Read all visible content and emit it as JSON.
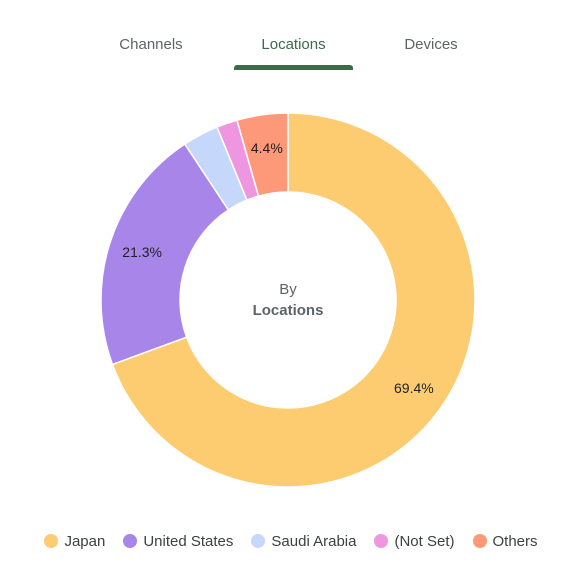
{
  "tabs": [
    {
      "label": "Channels",
      "active": false
    },
    {
      "label": "Locations",
      "active": true
    },
    {
      "label": "Devices",
      "active": false
    }
  ],
  "center": {
    "line1": "By",
    "line2": "Locations"
  },
  "colors": {
    "accent": "#3a6b4a"
  },
  "chart_data": {
    "type": "pie",
    "donut": true,
    "legend_position": "bottom",
    "categories": [
      "Japan",
      "United States",
      "Saudi Arabia",
      "(Not Set)",
      "Others"
    ],
    "values": [
      69.4,
      21.3,
      3.1,
      1.8,
      4.4
    ],
    "colors": [
      "#fdcc70",
      "#a886e9",
      "#c5d7fb",
      "#ee96e0",
      "#fd9878"
    ],
    "data_labels": [
      "69.4%",
      "21.3%",
      "",
      "",
      "4.4%"
    ]
  }
}
